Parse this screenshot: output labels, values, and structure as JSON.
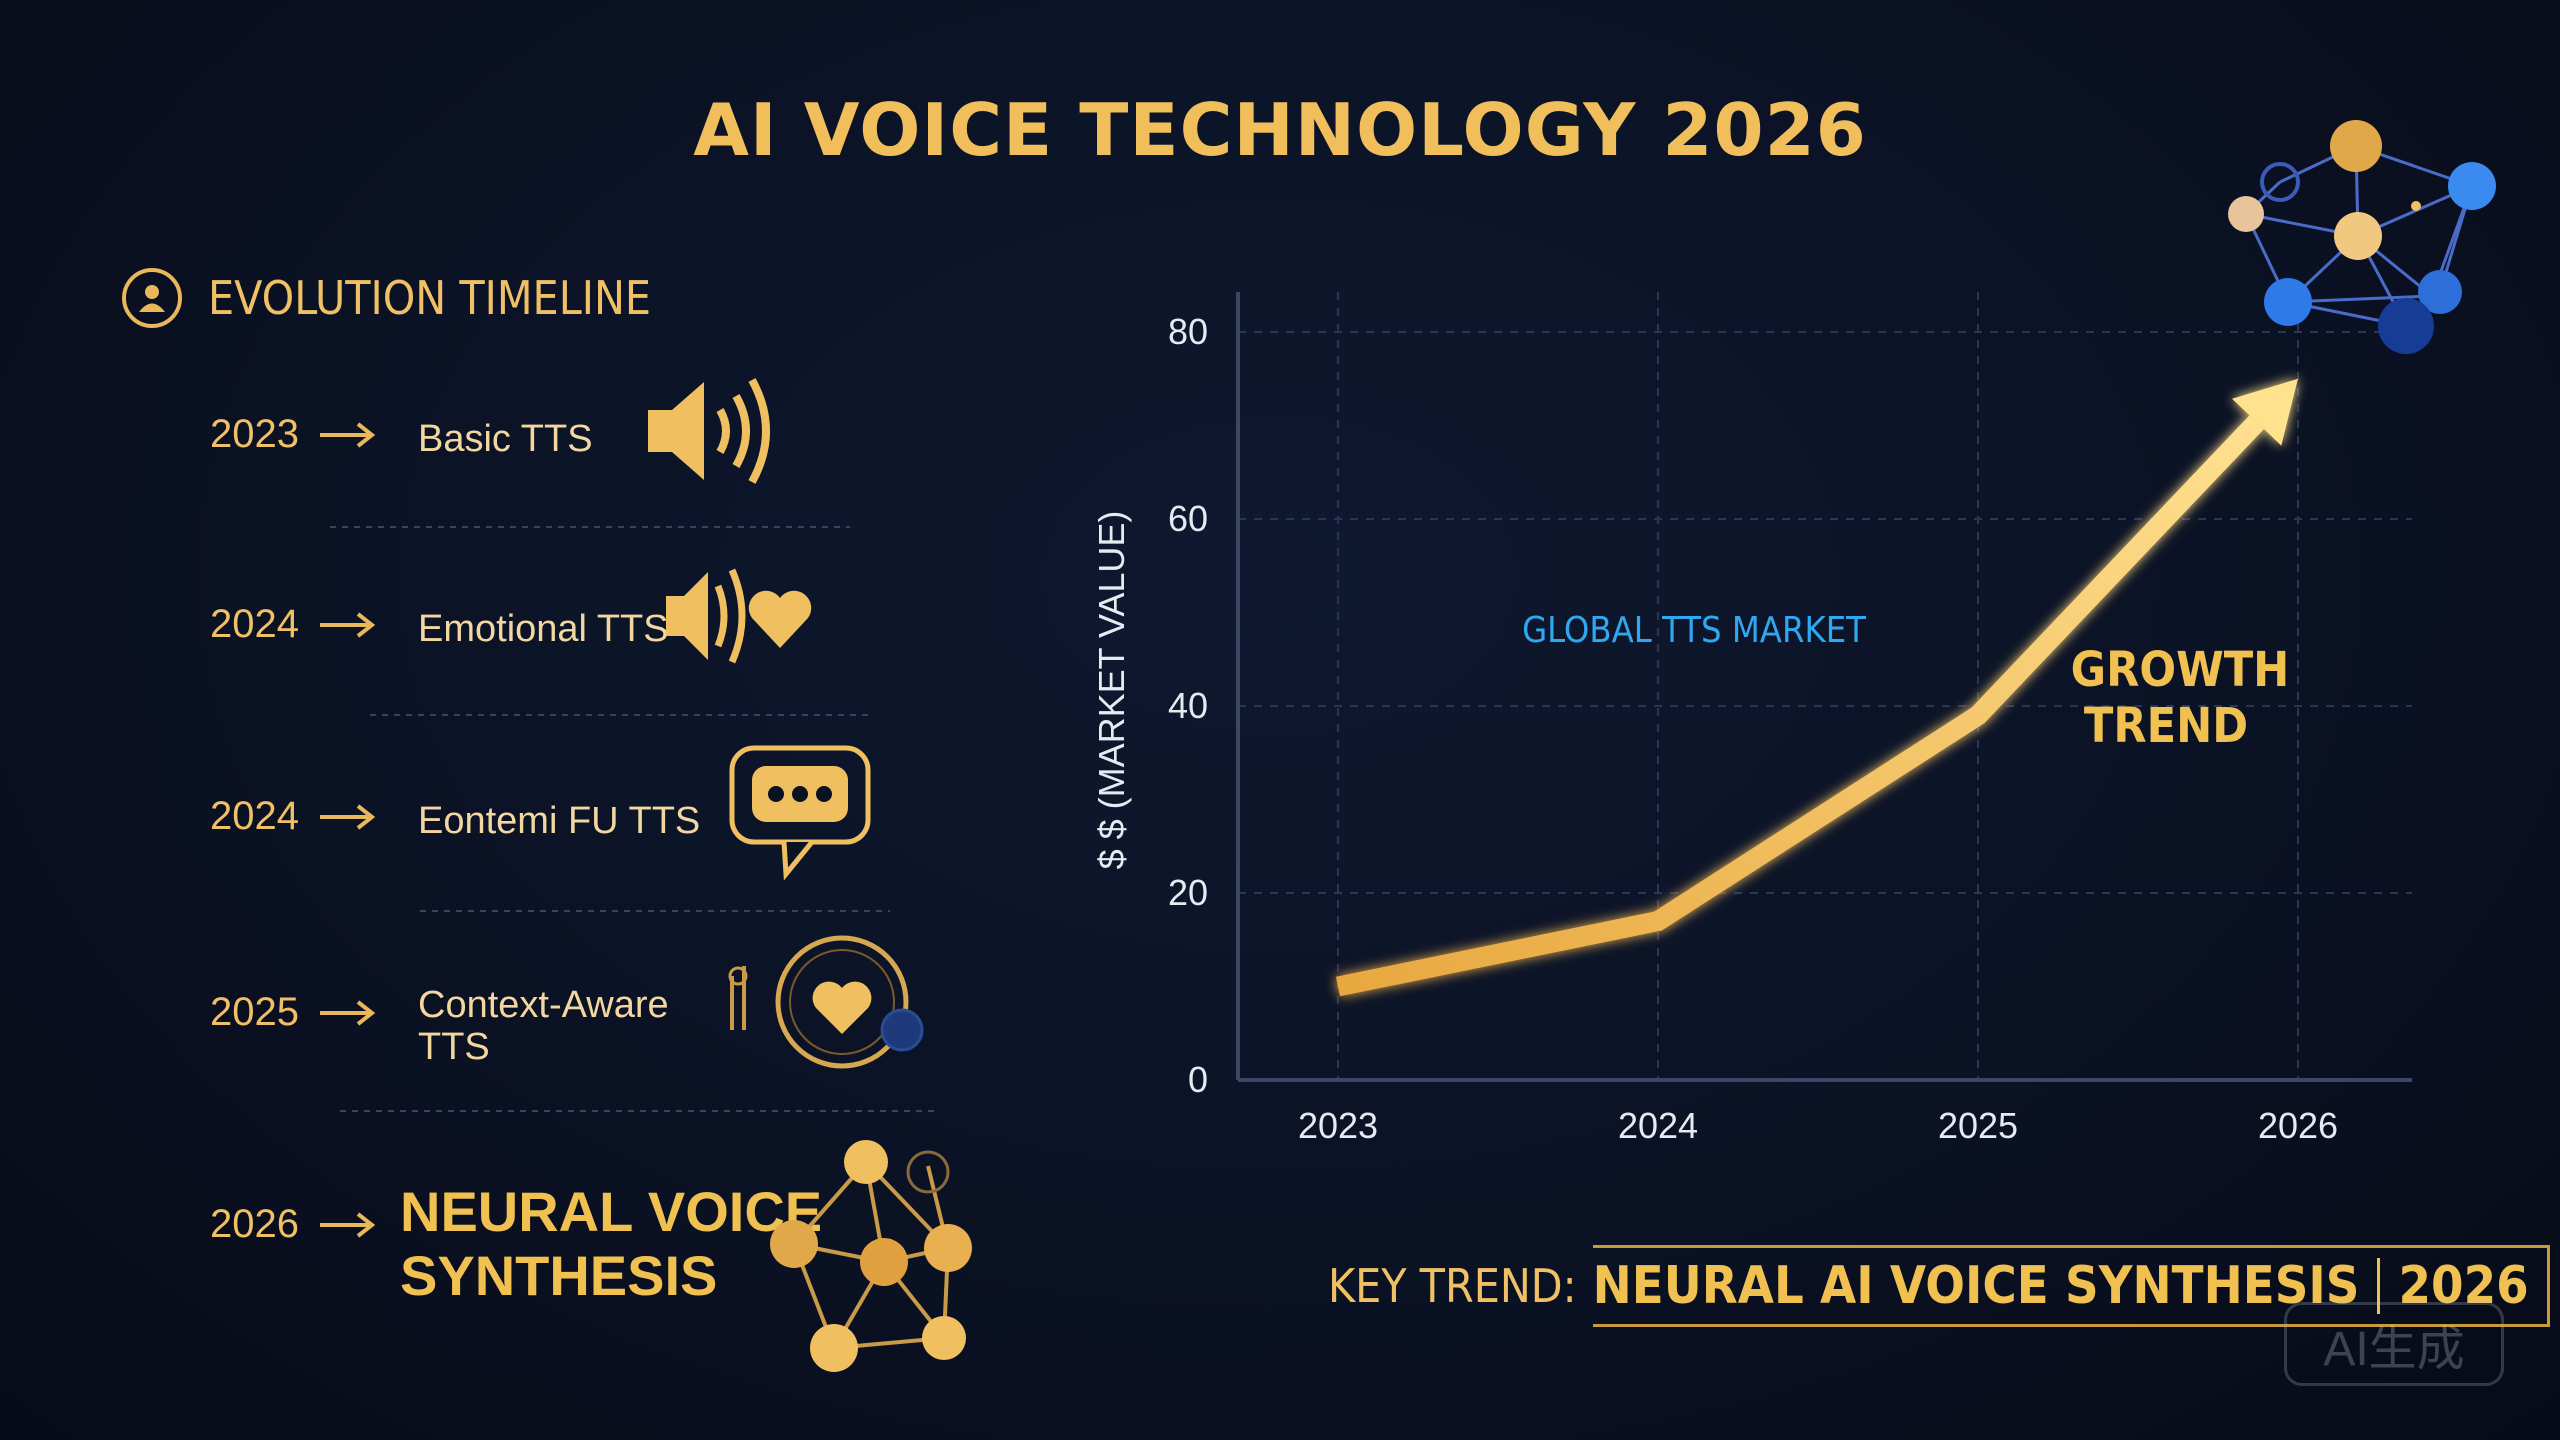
{
  "title": "AI VOICE TECHNOLOGY 2026",
  "timeline": {
    "heading": "EVOLUTION TIMELINE",
    "items": [
      {
        "year": "2023",
        "label": "Basic TTS",
        "icon": "speaker-icon"
      },
      {
        "year": "2024",
        "label": "Emotional TTS",
        "icon": "speaker-heart-icon"
      },
      {
        "year": "2024",
        "label": "Eontemi FU TTS",
        "icon": "chat-bubble-icon"
      },
      {
        "year": "2025",
        "label": "Context-Aware",
        "label2": "TTS",
        "icon": "heart-circle-icon"
      },
      {
        "year": "2026",
        "label": "NEURAL VOICE",
        "label2": "SYNTHESIS",
        "icon": "neural-network-icon"
      }
    ]
  },
  "chart_data": {
    "type": "line",
    "x": [
      "2023",
      "2024",
      "2025",
      "2026"
    ],
    "series": [
      {
        "values": [
          10,
          17,
          39,
          75
        ]
      }
    ],
    "ylabel": "$ $ (MARKET VALUE)",
    "yticks": [
      0,
      20,
      40,
      60,
      80
    ],
    "ylim": [
      0,
      80
    ],
    "grid": true,
    "annotations": {
      "market": "GLOBAL TTS MARKET",
      "growth_line1": "GROWTH",
      "growth_line2": "TREND"
    }
  },
  "key_trend": {
    "label": "KEY TREND:",
    "text": "NEURAL AI VOICE SYNTHESIS",
    "year": "2026"
  },
  "watermark": "AI生成",
  "colors": {
    "gold": "#f0c050",
    "blue_text": "#2fa8f0",
    "background": "#0b1224"
  }
}
